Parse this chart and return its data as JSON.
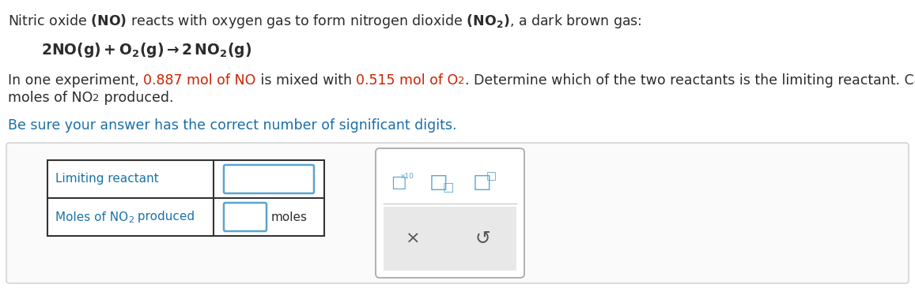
{
  "line1": "Nitric oxide (NO) reacts with oxygen gas to form nitrogen dioxide (NO₂), a dark brown gas:",
  "equation": "2NO(g) + O₂(g) → 2NO₂(g)",
  "para_black1": "In one experiment, ",
  "para_red1": "0.887 mol of NO",
  "para_black2": " is mixed with ",
  "para_red2": "0.515 mol of O",
  "para_red2_sub": "2",
  "para_black3": ". Determine which of the two reactants is the limiting reactant. Calculate also the number of",
  "para_black4": "moles of NO",
  "para_black4_sub": "2",
  "para_black5": " produced.",
  "sig_text": "Be sure your answer has the correct number of significant digits.",
  "sig_color": "#1a6ea8",
  "row1_label": "Limiting reactant",
  "row2_label": "Moles of NO",
  "row2_label_sub": "2",
  "row2_label2": " produced",
  "row2_unit": "moles",
  "label_color": "#1a73a7",
  "text_color": "#2c2c2c",
  "red_color": "#cc2200",
  "bg_color": "#ffffff",
  "table_border": "#333333",
  "input_border": "#5ba4cf",
  "panel_border": "#aaaaaa",
  "outer_box_border": "#cccccc",
  "outer_box_bg": "#fafafa",
  "fs_main": 12.5,
  "fs_eq": 13.5,
  "fs_label": 11.0
}
